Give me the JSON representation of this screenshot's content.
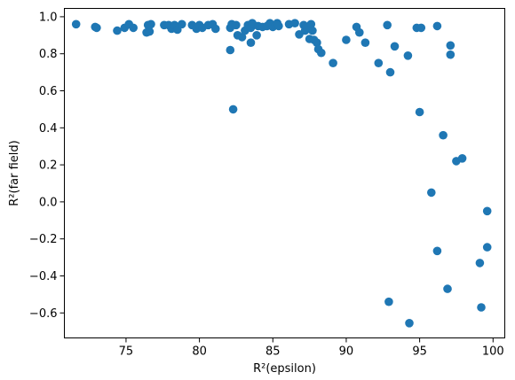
{
  "chart_data": {
    "type": "scatter",
    "title": "",
    "xlabel": "R²(epsilon)",
    "ylabel": "R²(far field)",
    "xlim": [
      70.8,
      100.8
    ],
    "ylim": [
      -0.735,
      1.045
    ],
    "xticks": [
      75,
      80,
      85,
      90,
      95,
      100
    ],
    "yticks": [
      -0.6,
      -0.4,
      -0.2,
      0.0,
      0.2,
      0.4,
      0.6,
      0.8,
      1.0
    ],
    "xtick_labels": [
      "75",
      "80",
      "85",
      "90",
      "95",
      "100"
    ],
    "ytick_labels": [
      "−0.6",
      "−0.4",
      "−0.2",
      "0.0",
      "0.2",
      "0.4",
      "0.6",
      "0.8",
      "1.0"
    ],
    "grid": false,
    "legend": false,
    "marker_color": "#1f77b4",
    "points": [
      [
        71.6,
        0.96
      ],
      [
        72.9,
        0.945
      ],
      [
        73.0,
        0.94
      ],
      [
        74.4,
        0.925
      ],
      [
        74.9,
        0.94
      ],
      [
        75.2,
        0.96
      ],
      [
        75.5,
        0.94
      ],
      [
        76.4,
        0.915
      ],
      [
        76.5,
        0.955
      ],
      [
        76.6,
        0.92
      ],
      [
        76.7,
        0.96
      ],
      [
        77.6,
        0.955
      ],
      [
        77.9,
        0.955
      ],
      [
        78.1,
        0.935
      ],
      [
        78.3,
        0.955
      ],
      [
        78.5,
        0.93
      ],
      [
        78.8,
        0.96
      ],
      [
        79.5,
        0.955
      ],
      [
        79.8,
        0.935
      ],
      [
        80.0,
        0.955
      ],
      [
        80.2,
        0.94
      ],
      [
        80.6,
        0.955
      ],
      [
        80.9,
        0.96
      ],
      [
        81.1,
        0.935
      ],
      [
        82.1,
        0.94
      ],
      [
        82.2,
        0.96
      ],
      [
        82.1,
        0.82
      ],
      [
        82.3,
        0.5
      ],
      [
        82.5,
        0.955
      ],
      [
        82.6,
        0.9
      ],
      [
        82.9,
        0.89
      ],
      [
        83.1,
        0.925
      ],
      [
        83.3,
        0.955
      ],
      [
        83.5,
        0.94
      ],
      [
        83.5,
        0.86
      ],
      [
        83.6,
        0.965
      ],
      [
        83.9,
        0.9
      ],
      [
        84.0,
        0.95
      ],
      [
        84.3,
        0.945
      ],
      [
        84.6,
        0.95
      ],
      [
        84.8,
        0.965
      ],
      [
        85.0,
        0.945
      ],
      [
        85.2,
        0.955
      ],
      [
        85.3,
        0.965
      ],
      [
        85.4,
        0.95
      ],
      [
        86.1,
        0.96
      ],
      [
        86.5,
        0.965
      ],
      [
        86.8,
        0.905
      ],
      [
        87.1,
        0.955
      ],
      [
        87.2,
        0.925
      ],
      [
        87.3,
        0.945
      ],
      [
        87.6,
        0.96
      ],
      [
        87.5,
        0.88
      ],
      [
        87.7,
        0.925
      ],
      [
        87.8,
        0.875
      ],
      [
        88.0,
        0.86
      ],
      [
        88.1,
        0.825
      ],
      [
        88.3,
        0.805
      ],
      [
        89.1,
        0.75
      ],
      [
        90.0,
        0.875
      ],
      [
        90.7,
        0.945
      ],
      [
        90.9,
        0.915
      ],
      [
        91.3,
        0.86
      ],
      [
        92.2,
        0.75
      ],
      [
        92.8,
        0.955
      ],
      [
        93.0,
        0.7
      ],
      [
        93.3,
        0.84
      ],
      [
        94.2,
        0.79
      ],
      [
        94.8,
        0.94
      ],
      [
        95.1,
        0.94
      ],
      [
        96.2,
        0.95
      ],
      [
        97.1,
        0.845
      ],
      [
        97.1,
        0.795
      ],
      [
        92.9,
        -0.54
      ],
      [
        94.3,
        -0.655
      ],
      [
        95.0,
        0.485
      ],
      [
        96.6,
        0.36
      ],
      [
        97.5,
        0.22
      ],
      [
        97.9,
        0.235
      ],
      [
        95.8,
        0.05
      ],
      [
        96.2,
        -0.265
      ],
      [
        96.9,
        -0.47
      ],
      [
        99.1,
        -0.33
      ],
      [
        99.2,
        -0.57
      ],
      [
        99.6,
        -0.245
      ],
      [
        99.6,
        -0.05
      ]
    ]
  }
}
